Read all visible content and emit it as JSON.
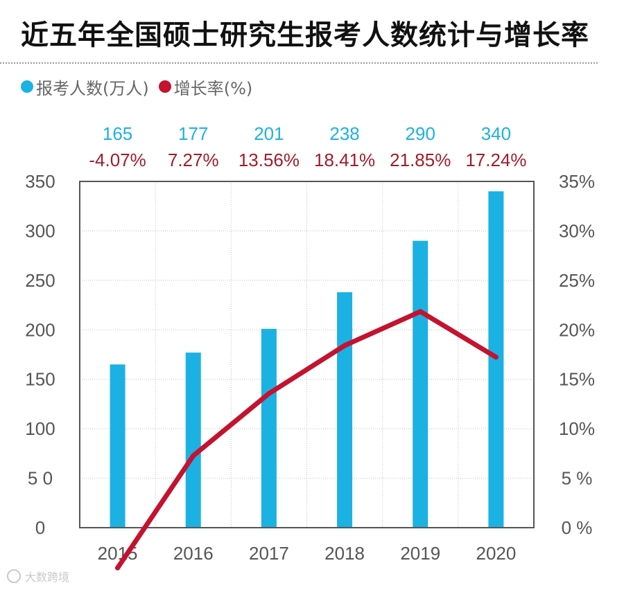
{
  "title": "近五年全国硕士研究生报考人数统计与增长率",
  "legend": [
    {
      "label": "报考人数(万人)",
      "color": "#1cb1e3"
    },
    {
      "label": "增长率(%)",
      "color": "#c4122f"
    }
  ],
  "watermark": "大数跨境",
  "colors": {
    "bar": "#1cb1e3",
    "line": "#c4122f",
    "count_label": "#1cb1e3",
    "rate_label": "#a31b2a",
    "axis_text": "#555555",
    "grid": "#bfbfbf",
    "frame": "#555555"
  },
  "chart_data": {
    "type": "bar",
    "title": "近五年全国硕士研究生报考人数统计与增长率",
    "categories": [
      "2015",
      "2016",
      "2017",
      "2018",
      "2019",
      "2020"
    ],
    "series": [
      {
        "name": "报考人数(万人)",
        "type": "bar",
        "axis": "left",
        "values": [
          165,
          177,
          201,
          238,
          290,
          340
        ]
      },
      {
        "name": "增长率(%)",
        "type": "line",
        "axis": "right",
        "values": [
          -4.07,
          7.27,
          13.56,
          18.41,
          21.85,
          17.24
        ]
      }
    ],
    "count_labels": [
      "165",
      "177",
      "201",
      "238",
      "290",
      "340"
    ],
    "rate_labels": [
      "-4.07%",
      "7.27%",
      "13.56%",
      "18.41%",
      "21.85%",
      "17.24%"
    ],
    "y_left": {
      "min": 0,
      "max": 350,
      "ticks": [
        0,
        50,
        100,
        150,
        200,
        250,
        300,
        350
      ],
      "tick_labels": [
        "0",
        "5 0",
        "100",
        "150",
        "200",
        "250",
        "300",
        "350"
      ]
    },
    "y_right": {
      "min": 0,
      "max": 35,
      "ticks": [
        0,
        5,
        10,
        15,
        20,
        25,
        30,
        35
      ],
      "tick_labels": [
        "0 %",
        "5 %",
        "10%",
        "15%",
        "20%",
        "25%",
        "30%",
        "35%"
      ]
    },
    "grid": true,
    "legend_position": "top-left"
  }
}
